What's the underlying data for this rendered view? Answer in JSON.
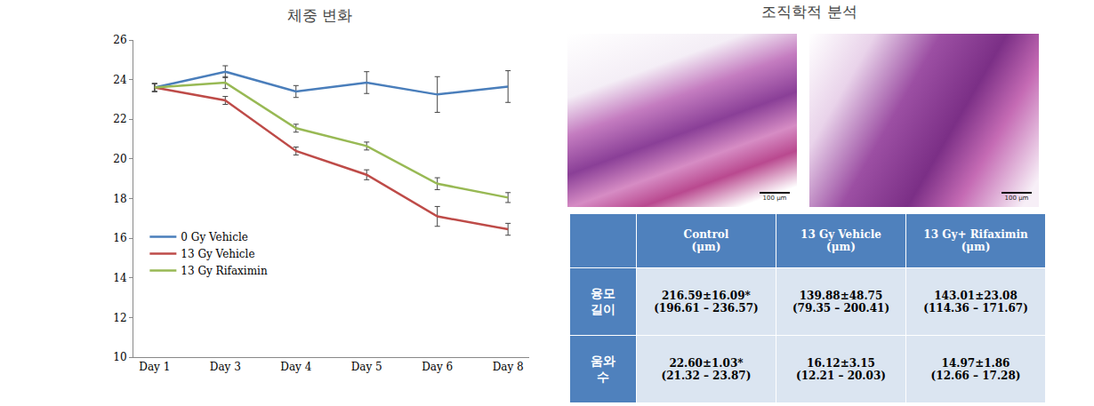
{
  "chart_data": {
    "type": "line",
    "title": "체중 변화",
    "categories": [
      "Day 1",
      "Day 3",
      "Day 4",
      "Day 5",
      "Day 6",
      "Day 8"
    ],
    "series": [
      {
        "name": "0 Gy Vehicle",
        "color": "#4a7ebb",
        "values": [
          23.6,
          24.4,
          23.4,
          23.85,
          23.25,
          23.65
        ],
        "errors": [
          0.2,
          0.3,
          0.3,
          0.55,
          0.9,
          0.8
        ]
      },
      {
        "name": "13 Gy Vehicle",
        "color": "#be4b48",
        "values": [
          23.6,
          22.95,
          20.4,
          19.2,
          17.1,
          16.45
        ],
        "errors": [
          0.2,
          0.2,
          0.2,
          0.25,
          0.5,
          0.3
        ]
      },
      {
        "name": "13 Gy Rifaximin",
        "color": "#98b954",
        "values": [
          23.6,
          23.85,
          21.55,
          20.65,
          18.75,
          18.05
        ],
        "errors": [
          0.2,
          0.3,
          0.2,
          0.2,
          0.3,
          0.25
        ]
      }
    ],
    "ylim": [
      10,
      26
    ],
    "yticks": [
      10,
      12,
      14,
      16,
      18,
      20,
      22,
      24,
      26
    ],
    "grid": false,
    "legend": "lower left",
    "line_style": "solid"
  },
  "histology": {
    "title": "조직학적 분석",
    "images": [
      {
        "scale_bar": "100 μm"
      },
      {
        "scale_bar": "100 μm"
      }
    ],
    "table": {
      "header": [
        "",
        [
          "Control",
          "(μm)"
        ],
        [
          "13 Gy Vehicle",
          "(μm)"
        ],
        [
          "13 Gy+ Rifaximin",
          "(μm)"
        ]
      ],
      "rows": [
        [
          [
            "융모",
            "길이"
          ],
          [
            "216.59±16.09*",
            "(196.61 – 236.57)"
          ],
          [
            "139.88±48.75",
            "(79.35 – 200.41)"
          ],
          [
            "143.01±23.08",
            "(114.36 – 171.67)"
          ]
        ],
        [
          [
            "움와",
            "수"
          ],
          [
            "22.60±1.03*",
            "(21.32 – 23.87)"
          ],
          [
            "16.12±3.15",
            "(12.21 – 20.03)"
          ],
          [
            "14.97±1.86",
            "(12.66 – 17.28)"
          ]
        ]
      ]
    }
  }
}
